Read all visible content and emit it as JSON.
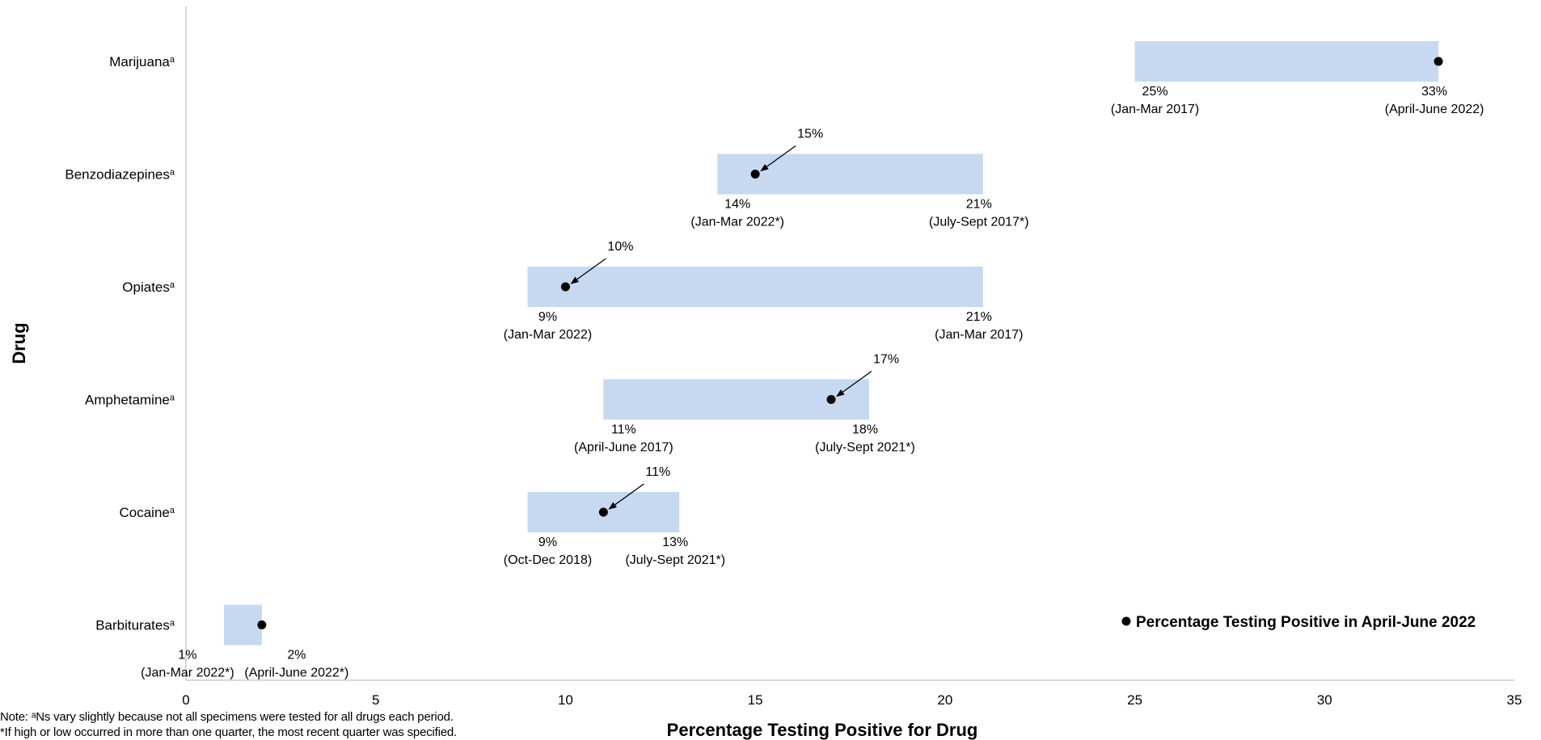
{
  "chart_data": {
    "type": "range-bar",
    "xlabel": "Percentage Testing Positive for Drug",
    "ylabel": "Drug",
    "xlim": [
      0,
      35
    ],
    "xticks": [
      0,
      5,
      10,
      15,
      20,
      25,
      30,
      35
    ],
    "grid": false,
    "legend": {
      "label": "Percentage Testing Positive in April-June 2022",
      "position": "bottom-right"
    },
    "categories": [
      {
        "label": "Marijuana",
        "sup": "a",
        "low": 25,
        "low_label": "25%",
        "low_period": "(Jan-Mar 2017)",
        "high": 33,
        "high_label": "33%",
        "high_period": "(April-June 2022)",
        "current": 33,
        "current_label": ""
      },
      {
        "label": "Benzodiazepines",
        "sup": "a",
        "low": 14,
        "low_label": "14%",
        "low_period": "(Jan-Mar 2022*)",
        "high": 21,
        "high_label": "21%",
        "high_period": "(July-Sept 2017*)",
        "current": 15,
        "current_label": "15%"
      },
      {
        "label": "Opiates",
        "sup": "a",
        "low": 9,
        "low_label": "9%",
        "low_period": "(Jan-Mar 2022)",
        "high": 21,
        "high_label": "21%",
        "high_period": "(Jan-Mar 2017)",
        "current": 10,
        "current_label": "10%"
      },
      {
        "label": "Amphetamine",
        "sup": "a",
        "low": 11,
        "low_label": "11%",
        "low_period": "(April-June 2017)",
        "high": 18,
        "high_label": "18%",
        "high_period": "(July-Sept 2021*)",
        "current": 17,
        "current_label": "17%"
      },
      {
        "label": "Cocaine",
        "sup": "a",
        "low": 9,
        "low_label": "9%",
        "low_period": "(Oct-Dec 2018)",
        "high": 13,
        "high_label": "13%",
        "high_period": "(July-Sept 2021*)",
        "current": 11,
        "current_label": "11%"
      },
      {
        "label": "Barbiturates",
        "sup": "a",
        "low": 1,
        "low_label": "1%",
        "low_period": "(Jan-Mar 2022*)",
        "high": 2,
        "high_label": "2%",
        "high_period": "(April-June 2022*)",
        "current": 2,
        "current_label": ""
      }
    ],
    "colors": {
      "bar": "#c6d9f1",
      "marker": "#000000",
      "axis": "#bfbfbf"
    }
  },
  "notes": {
    "line1": "Note: ᵃNs vary slightly because not all specimens were tested for all drugs each period.",
    "line2": "*If high or low occurred in more than one quarter, the most recent quarter was specified."
  }
}
